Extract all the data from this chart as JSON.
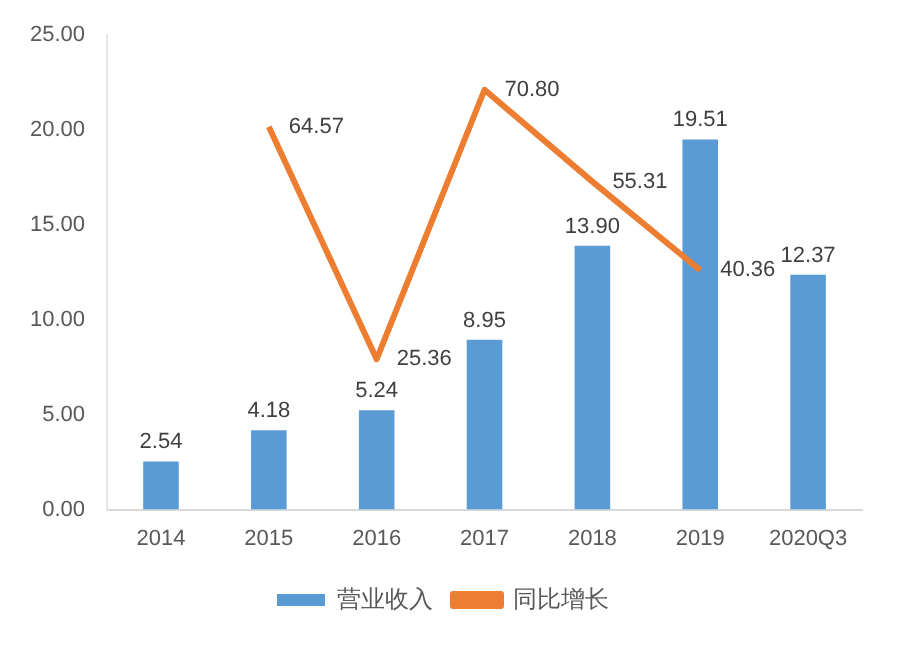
{
  "chart_data": {
    "type": "bar",
    "categories": [
      "2014",
      "2015",
      "2016",
      "2017",
      "2018",
      "2019",
      "2020Q3"
    ],
    "series": [
      {
        "name": "营业收入",
        "color": "#5b9bd5",
        "values": [
          2.54,
          4.18,
          5.24,
          8.95,
          13.9,
          19.51,
          12.37
        ],
        "value_labels": [
          "2.54",
          "4.18",
          "5.24",
          "8.95",
          "13.90",
          "19.51",
          "12.37"
        ]
      },
      {
        "name": "同比增长",
        "type": "line",
        "axis": "y2",
        "color": "#ed7d31",
        "marker": "none",
        "values": [
          null,
          64.57,
          25.36,
          70.8,
          55.31,
          40.36,
          null
        ],
        "value_labels": [
          null,
          "64.57",
          "25.36",
          "70.80",
          "55.31",
          "40.36",
          null
        ]
      }
    ],
    "ylim": [
      0,
      25
    ],
    "yticks": [
      {
        "value": 0,
        "label": "0.00"
      },
      {
        "value": 5,
        "label": "5.00"
      },
      {
        "value": 10,
        "label": "10.00"
      },
      {
        "value": 15,
        "label": "15.00"
      },
      {
        "value": 20,
        "label": "20.00"
      },
      {
        "value": 25,
        "label": "25.00"
      }
    ],
    "grid": false,
    "legend": "bottom"
  }
}
